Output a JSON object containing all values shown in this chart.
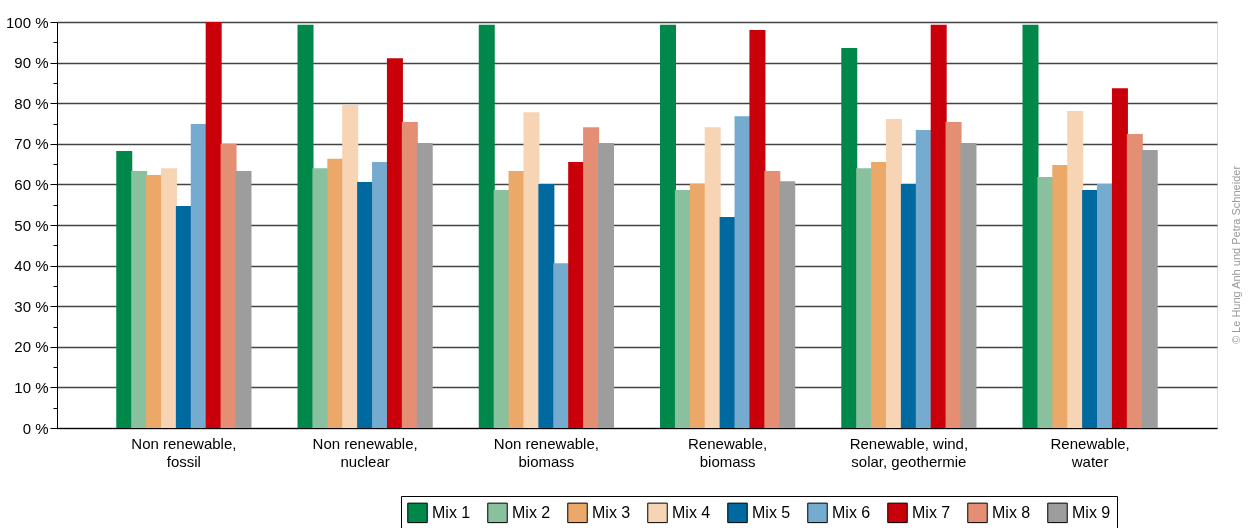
{
  "chart_data": {
    "type": "bar",
    "categories": [
      "Non renewable,\nfossil",
      "Non renewable,\nnuclear",
      "Non renewable,\nbiomass",
      "Renewable,\nbiomass",
      "Renewable, wind,\nsolar, geothermie",
      "Renewable,\nwater"
    ],
    "series": [
      {
        "name": "Mix 1",
        "color": "#00884a",
        "values": [
          68.2,
          99.3,
          99.3,
          99.3,
          93.6,
          99.3
        ]
      },
      {
        "name": "Mix 2",
        "color": "#89c09e",
        "values": [
          63.3,
          64.0,
          58.6,
          58.6,
          64.0,
          61.8
        ]
      },
      {
        "name": "Mix 3",
        "color": "#eba868",
        "values": [
          62.3,
          66.3,
          63.3,
          60.1,
          65.5,
          64.8
        ]
      },
      {
        "name": "Mix 4",
        "color": "#f7d4b4",
        "values": [
          64.0,
          79.6,
          77.8,
          74.1,
          76.1,
          78.1
        ]
      },
      {
        "name": "Mix 5",
        "color": "#00699f",
        "values": [
          54.7,
          60.6,
          60.1,
          52.0,
          60.1,
          58.6
        ]
      },
      {
        "name": "Mix 6",
        "color": "#76abd0",
        "values": [
          74.9,
          65.5,
          40.6,
          76.8,
          73.4,
          60.1
        ]
      },
      {
        "name": "Mix 7",
        "color": "#c90009",
        "values": [
          100,
          91.1,
          65.5,
          98.0,
          99.3,
          83.7
        ]
      },
      {
        "name": "Mix 8",
        "color": "#e48f74",
        "values": [
          70.0,
          75.4,
          74.1,
          63.3,
          75.4,
          72.4
        ]
      },
      {
        "name": "Mix 9",
        "color": "#9d9d9d",
        "values": [
          63.3,
          70.2,
          70.2,
          60.8,
          70.2,
          68.5
        ]
      }
    ],
    "ylim": [
      0,
      100
    ],
    "yticks": [
      {
        "value": 0,
        "label": "0 %"
      },
      {
        "value": 5,
        "label": null
      },
      {
        "value": 10,
        "label": "10 %"
      },
      {
        "value": 15,
        "label": null
      },
      {
        "value": 20,
        "label": "20 %"
      },
      {
        "value": 25,
        "label": null
      },
      {
        "value": 30,
        "label": "30 %"
      },
      {
        "value": 35,
        "label": null
      },
      {
        "value": 40,
        "label": "40 %"
      },
      {
        "value": 45,
        "label": null
      },
      {
        "value": 50,
        "label": "50 %"
      },
      {
        "value": 55,
        "label": null
      },
      {
        "value": 60,
        "label": "60 %"
      },
      {
        "value": 65,
        "label": null
      },
      {
        "value": 70,
        "label": "70 %"
      },
      {
        "value": 75,
        "label": null
      },
      {
        "value": 80,
        "label": "80 %"
      },
      {
        "value": 85,
        "label": null
      },
      {
        "value": 90,
        "label": "90 %"
      },
      {
        "value": 95,
        "label": null
      },
      {
        "value": 100,
        "label": "100 %"
      }
    ],
    "grid": "y",
    "legend": "bottom right",
    "annotations": [
      "© Le Hung Anh und Petra Schneider"
    ]
  }
}
